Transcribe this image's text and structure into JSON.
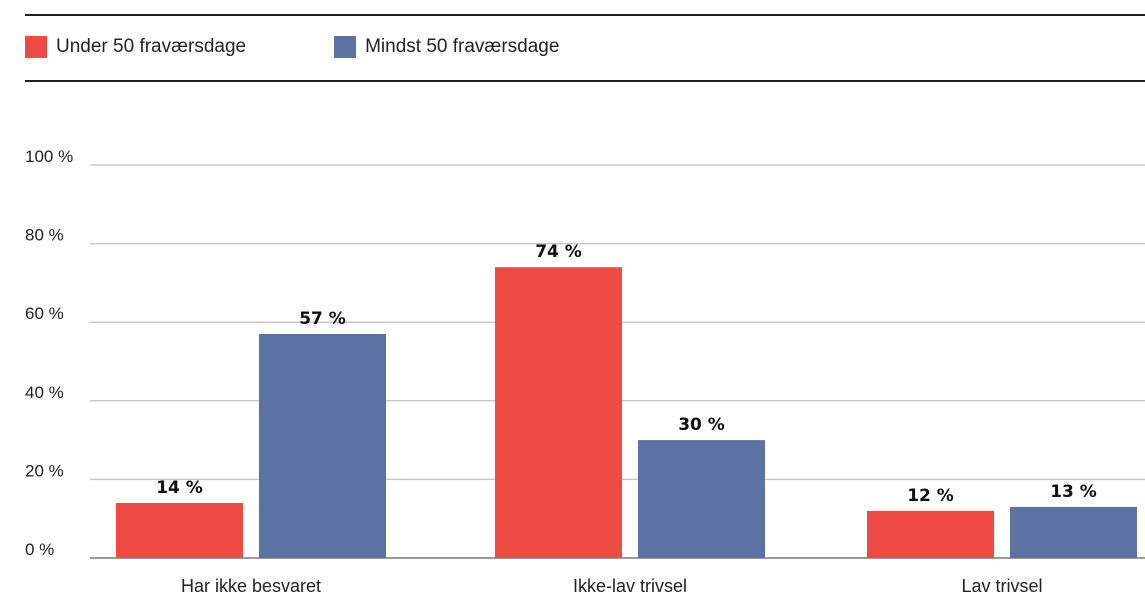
{
  "legend": {
    "items": [
      {
        "label": "Under 50 fraværsdage",
        "color": "#ef4b45"
      },
      {
        "label": "Mindst 50 fraværsdage",
        "color": "#5b72a2"
      }
    ]
  },
  "chart_data": {
    "type": "bar",
    "categories": [
      "Har ikke besvaret",
      "Ikke-lav trivsel",
      "Lav trivsel"
    ],
    "series": [
      {
        "name": "Under 50 fraværsdage",
        "values": [
          14,
          74,
          12
        ],
        "labels": [
          "14 %",
          "74 %",
          "12 %"
        ],
        "color": "#ef4b45"
      },
      {
        "name": "Mindst 50 fraværsdage",
        "values": [
          57,
          30,
          13
        ],
        "labels": [
          "57 %",
          "30 %",
          "13 %"
        ],
        "color": "#5b72a2"
      }
    ],
    "ylim": [
      0,
      100
    ],
    "yticks": [
      0,
      20,
      40,
      60,
      80,
      100
    ],
    "ytick_labels": [
      "0 %",
      "20 %",
      "40 %",
      "60 %",
      "80 %",
      "100 %"
    ],
    "grid": true,
    "legend_position": "top-left"
  }
}
